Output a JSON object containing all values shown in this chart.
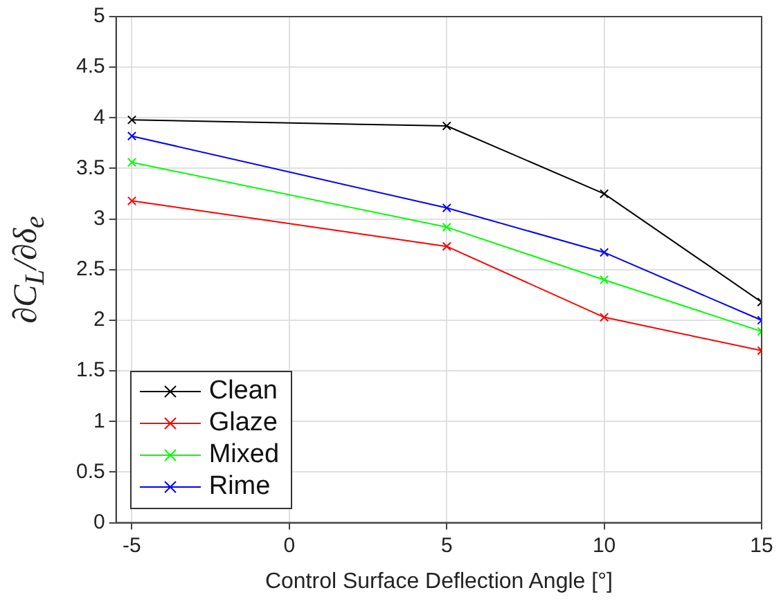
{
  "chart_data": {
    "type": "line",
    "xlabel": "Control Surface Deflection Angle [°]",
    "ylabel": "∂C$_{L}$/∂δ$_{e}$",
    "x": [
      -5,
      5,
      10,
      15
    ],
    "series": [
      {
        "name": "Clean",
        "color": "#000000",
        "values": [
          3.98,
          3.92,
          3.25,
          2.18
        ]
      },
      {
        "name": "Glaze",
        "color": "#ff0000",
        "values": [
          3.18,
          2.73,
          2.03,
          1.7
        ]
      },
      {
        "name": "Mixed",
        "color": "#00ff00",
        "values": [
          3.56,
          2.92,
          2.4,
          1.89
        ]
      },
      {
        "name": "Rime",
        "color": "#0000ff",
        "values": [
          3.82,
          3.11,
          2.67,
          2.0
        ]
      }
    ],
    "xlim": [
      -5.5,
      15
    ],
    "xticks": [
      -5,
      0,
      5,
      10,
      15
    ],
    "ylim": [
      0,
      5
    ],
    "yticks": [
      0,
      0.5,
      1,
      1.5,
      2,
      2.5,
      3,
      3.5,
      4,
      4.5,
      5
    ],
    "grid": true,
    "legend": "bottom left",
    "marker": "cross",
    "line_style": "solid"
  }
}
